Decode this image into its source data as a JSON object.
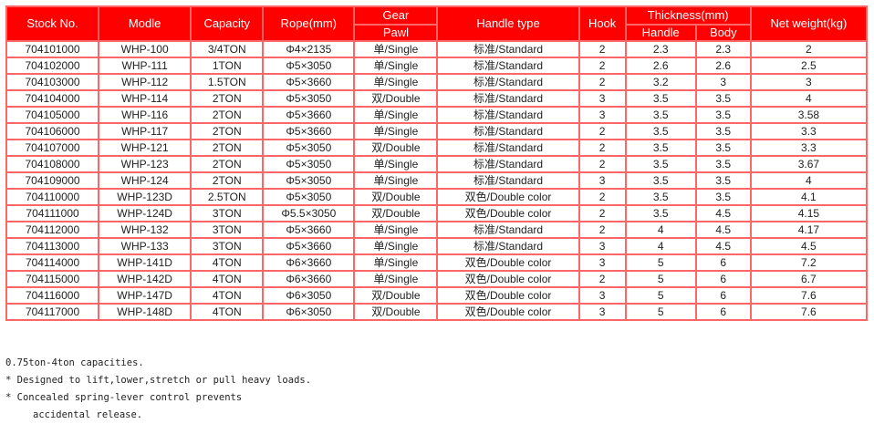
{
  "headers": {
    "stock": "Stock No.",
    "model": "Modle",
    "capacity": "Capacity",
    "rope": "Rope(mm)",
    "gear": "Gear",
    "pawl": "Pawl",
    "handle_type": "Handle type",
    "hook": "Hook",
    "thickness": "Thickness(mm)",
    "handle": "Handle",
    "body": "Body",
    "weight": "Net weight(kg)"
  },
  "rows": [
    [
      "704101000",
      "WHP-100",
      "3/4TON",
      "Φ4×2135",
      "单/Single",
      "标准/Standard",
      "2",
      "2.3",
      "2.3",
      "2"
    ],
    [
      "704102000",
      "WHP-111",
      "1TON",
      "Φ5×3050",
      "单/Single",
      "标准/Standard",
      "2",
      "2.6",
      "2.6",
      "2.5"
    ],
    [
      "704103000",
      "WHP-112",
      "1.5TON",
      "Φ5×3660",
      "单/Single",
      "标准/Standard",
      "2",
      "3.2",
      "3",
      "3"
    ],
    [
      "704104000",
      "WHP-114",
      "2TON",
      "Φ5×3050",
      "双/Double",
      "标准/Standard",
      "3",
      "3.5",
      "3.5",
      "4"
    ],
    [
      "704105000",
      "WHP-116",
      "2TON",
      "Φ5×3660",
      "单/Single",
      "标准/Standard",
      "3",
      "3.5",
      "3.5",
      "3.58"
    ],
    [
      "704106000",
      "WHP-117",
      "2TON",
      "Φ5×3660",
      "单/Single",
      "标准/Standard",
      "2",
      "3.5",
      "3.5",
      "3.3"
    ],
    [
      "704107000",
      "WHP-121",
      "2TON",
      "Φ5×3050",
      "双/Double",
      "标准/Standard",
      "2",
      "3.5",
      "3.5",
      "3.3"
    ],
    [
      "704108000",
      "WHP-123",
      "2TON",
      "Φ5×3050",
      "单/Single",
      "标准/Standard",
      "2",
      "3.5",
      "3.5",
      "3.67"
    ],
    [
      "704109000",
      "WHP-124",
      "2TON",
      "Φ5×3050",
      "单/Single",
      "标准/Standard",
      "3",
      "3.5",
      "3.5",
      "4"
    ],
    [
      "704110000",
      "WHP-123D",
      "2.5TON",
      "Φ5×3050",
      "双/Double",
      "双色/Double color",
      "2",
      "3.5",
      "3.5",
      "4.1"
    ],
    [
      "704111000",
      "WHP-124D",
      "3TON",
      "Φ5.5×3050",
      "双/Double",
      "双色/Double color",
      "2",
      "3.5",
      "4.5",
      "4.15"
    ],
    [
      "704112000",
      "WHP-132",
      "3TON",
      "Φ5×3660",
      "单/Single",
      "标准/Standard",
      "2",
      "4",
      "4.5",
      "4.17"
    ],
    [
      "704113000",
      "WHP-133",
      "3TON",
      "Φ5×3660",
      "单/Single",
      "标准/Standard",
      "3",
      "4",
      "4.5",
      "4.5"
    ],
    [
      "704114000",
      "WHP-141D",
      "4TON",
      "Φ6×3660",
      "单/Single",
      "双色/Double color",
      "3",
      "5",
      "6",
      "7.2"
    ],
    [
      "704115000",
      "WHP-142D",
      "4TON",
      "Φ6×3660",
      "单/Single",
      "双色/Double color",
      "2",
      "5",
      "6",
      "6.7"
    ],
    [
      "704116000",
      "WHP-147D",
      "4TON",
      "Φ6×3050",
      "双/Double",
      "双色/Double color",
      "3",
      "5",
      "6",
      "7.6"
    ],
    [
      "704117000",
      "WHP-148D",
      "4TON",
      "Φ6×3050",
      "双/Double",
      "双色/Double color",
      "3",
      "5",
      "6",
      "7.6"
    ]
  ],
  "notes": [
    "0.75ton-4ton capacities.",
    "* Designed to lift,lower,stretch or pull heavy loads.",
    "* Concealed spring-lever control prevents",
    "accidental release."
  ],
  "colors": {
    "header_bg": "#ff0000",
    "border": "#ff6666"
  }
}
